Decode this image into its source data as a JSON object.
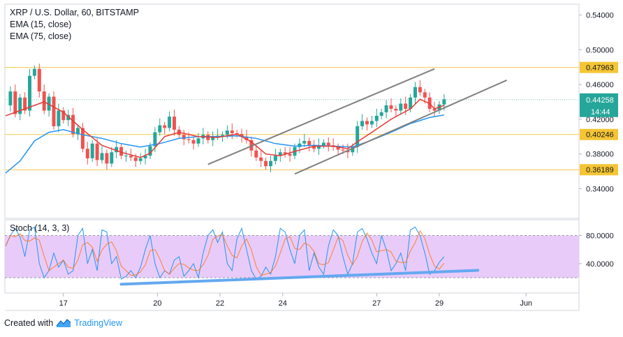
{
  "header": {
    "symbol_line": "XRP / U.S. Dollar, 60, BITSTAMP",
    "ema1_label": "EMA (15, close)",
    "ema2_label": "EMA (75, close)"
  },
  "oscillator": {
    "label": "Stoch (14, 3, 3)",
    "ticks": [
      "80.0000",
      "40.0000"
    ],
    "upper_band": 80,
    "lower_band": 20
  },
  "footer": {
    "created_with": "Created with",
    "brand": "TradingView"
  },
  "colors": {
    "up": "#26a69a",
    "down": "#ef5350",
    "ema_fast": "#e53935",
    "ema_slow": "#2196f3",
    "level_line": "#f2c94c",
    "level_label_bg": "#f5c533",
    "channel": "#808080",
    "stoch_fill": "#e7c5fa",
    "trendline": "#64a8f0"
  },
  "chart_data": {
    "type": "candlestick",
    "title": "XRP / U.S. Dollar, 60, BITSTAMP",
    "y_ticks": [
      "0.54000",
      "0.50000",
      "0.46000",
      "0.42000",
      "0.38000",
      "0.34000"
    ],
    "x_ticks": [
      "17",
      "20",
      "22",
      "24",
      "27",
      "29",
      "Jun"
    ],
    "ylim": [
      0.33,
      0.55
    ],
    "horizontal_levels": [
      "0.47963",
      "0.40246",
      "0.36189"
    ],
    "last_price": "0.44258",
    "countdown": "14:44",
    "series": [
      {
        "name": "EMA (15, close)",
        "type": "line"
      },
      {
        "name": "EMA (75, close)",
        "type": "line"
      }
    ],
    "price_path": [
      [
        0,
        0.436
      ],
      [
        1,
        0.452
      ],
      [
        2,
        0.426
      ],
      [
        3,
        0.445
      ],
      [
        4,
        0.43
      ],
      [
        5,
        0.47
      ],
      [
        6,
        0.478
      ],
      [
        7,
        0.452
      ],
      [
        8,
        0.43
      ],
      [
        9,
        0.446
      ],
      [
        10,
        0.412
      ],
      [
        11,
        0.43
      ],
      [
        12,
        0.419
      ],
      [
        13,
        0.425
      ],
      [
        14,
        0.403
      ],
      [
        15,
        0.41
      ],
      [
        16,
        0.386
      ],
      [
        17,
        0.375
      ],
      [
        18,
        0.392
      ],
      [
        19,
        0.373
      ],
      [
        20,
        0.381
      ],
      [
        21,
        0.369
      ],
      [
        22,
        0.382
      ],
      [
        23,
        0.388
      ],
      [
        24,
        0.378
      ],
      [
        25,
        0.378
      ],
      [
        26,
        0.376
      ],
      [
        27,
        0.372
      ],
      [
        28,
        0.375
      ],
      [
        29,
        0.378
      ],
      [
        30,
        0.389
      ],
      [
        31,
        0.405
      ],
      [
        32,
        0.413
      ],
      [
        33,
        0.41
      ],
      [
        34,
        0.423
      ],
      [
        35,
        0.408
      ],
      [
        36,
        0.402
      ],
      [
        37,
        0.397
      ],
      [
        38,
        0.396
      ],
      [
        39,
        0.392
      ],
      [
        40,
        0.398
      ],
      [
        41,
        0.402
      ],
      [
        42,
        0.396
      ],
      [
        43,
        0.4
      ],
      [
        44,
        0.401
      ],
      [
        45,
        0.402
      ],
      [
        46,
        0.407
      ],
      [
        47,
        0.404
      ],
      [
        48,
        0.403
      ],
      [
        49,
        0.4
      ],
      [
        50,
        0.396
      ],
      [
        51,
        0.384
      ],
      [
        52,
        0.376
      ],
      [
        53,
        0.372
      ],
      [
        54,
        0.366
      ],
      [
        55,
        0.372
      ],
      [
        56,
        0.378
      ],
      [
        57,
        0.382
      ],
      [
        58,
        0.38
      ],
      [
        59,
        0.378
      ],
      [
        60,
        0.388
      ],
      [
        61,
        0.392
      ],
      [
        62,
        0.395
      ],
      [
        63,
        0.39
      ],
      [
        64,
        0.386
      ],
      [
        65,
        0.39
      ],
      [
        66,
        0.393
      ],
      [
        67,
        0.39
      ],
      [
        68,
        0.388
      ],
      [
        69,
        0.385
      ],
      [
        70,
        0.384
      ],
      [
        71,
        0.382
      ],
      [
        72,
        0.388
      ],
      [
        73,
        0.412
      ],
      [
        74,
        0.418
      ],
      [
        75,
        0.414
      ],
      [
        76,
        0.418
      ],
      [
        77,
        0.424
      ],
      [
        78,
        0.428
      ],
      [
        79,
        0.436
      ],
      [
        80,
        0.432
      ],
      [
        81,
        0.43
      ],
      [
        82,
        0.438
      ],
      [
        83,
        0.432
      ],
      [
        84,
        0.445
      ],
      [
        85,
        0.457
      ],
      [
        86,
        0.451
      ],
      [
        87,
        0.445
      ],
      [
        88,
        0.432
      ],
      [
        89,
        0.43
      ],
      [
        90,
        0.437
      ],
      [
        91,
        0.443
      ]
    ],
    "ema_fast_path": [
      [
        0,
        0.424
      ],
      [
        4,
        0.432
      ],
      [
        8,
        0.44
      ],
      [
        12,
        0.428
      ],
      [
        16,
        0.408
      ],
      [
        20,
        0.39
      ],
      [
        24,
        0.382
      ],
      [
        28,
        0.376
      ],
      [
        30,
        0.381
      ],
      [
        33,
        0.4
      ],
      [
        36,
        0.405
      ],
      [
        40,
        0.4
      ],
      [
        44,
        0.399
      ],
      [
        48,
        0.403
      ],
      [
        51,
        0.394
      ],
      [
        54,
        0.38
      ],
      [
        57,
        0.378
      ],
      [
        60,
        0.383
      ],
      [
        64,
        0.389
      ],
      [
        68,
        0.389
      ],
      [
        71,
        0.386
      ],
      [
        73,
        0.394
      ],
      [
        76,
        0.405
      ],
      [
        80,
        0.42
      ],
      [
        84,
        0.432
      ],
      [
        86,
        0.443
      ],
      [
        88,
        0.438
      ],
      [
        89,
        0.432
      ],
      [
        91,
        0.436
      ]
    ],
    "ema_slow_path": [
      [
        0,
        0.358
      ],
      [
        3,
        0.372
      ],
      [
        6,
        0.395
      ],
      [
        9,
        0.405
      ],
      [
        12,
        0.408
      ],
      [
        16,
        0.402
      ],
      [
        20,
        0.398
      ],
      [
        24,
        0.392
      ],
      [
        28,
        0.388
      ],
      [
        32,
        0.392
      ],
      [
        36,
        0.398
      ],
      [
        40,
        0.4
      ],
      [
        44,
        0.4
      ],
      [
        48,
        0.401
      ],
      [
        52,
        0.398
      ],
      [
        56,
        0.392
      ],
      [
        60,
        0.389
      ],
      [
        64,
        0.39
      ],
      [
        68,
        0.389
      ],
      [
        72,
        0.388
      ],
      [
        76,
        0.396
      ],
      [
        80,
        0.405
      ],
      [
        84,
        0.415
      ],
      [
        88,
        0.422
      ],
      [
        91,
        0.425
      ]
    ],
    "upper_channel": [
      [
        42,
        0.368
      ],
      [
        89,
        0.478
      ]
    ],
    "lower_channel": [
      [
        60,
        0.357
      ],
      [
        104,
        0.465
      ]
    ],
    "stoch_trendline": [
      [
        24,
        0.12
      ],
      [
        98,
        0.31
      ]
    ],
    "stoch_k": [
      [
        0,
        65
      ],
      [
        1,
        80
      ],
      [
        2,
        90
      ],
      [
        3,
        78
      ],
      [
        4,
        50
      ],
      [
        5,
        88
      ],
      [
        6,
        92
      ],
      [
        7,
        40
      ],
      [
        8,
        20
      ],
      [
        9,
        30
      ],
      [
        10,
        55
      ],
      [
        11,
        35
      ],
      [
        12,
        45
      ],
      [
        13,
        25
      ],
      [
        14,
        30
      ],
      [
        15,
        80
      ],
      [
        16,
        90
      ],
      [
        17,
        40
      ],
      [
        18,
        60
      ],
      [
        19,
        30
      ],
      [
        20,
        88
      ],
      [
        21,
        85
      ],
      [
        22,
        40
      ],
      [
        23,
        50
      ],
      [
        24,
        18
      ],
      [
        25,
        22
      ],
      [
        26,
        30
      ],
      [
        27,
        20
      ],
      [
        28,
        35
      ],
      [
        29,
        60
      ],
      [
        30,
        80
      ],
      [
        31,
        40
      ],
      [
        32,
        20
      ],
      [
        33,
        30
      ],
      [
        34,
        25
      ],
      [
        35,
        45
      ],
      [
        36,
        50
      ],
      [
        37,
        22
      ],
      [
        38,
        30
      ],
      [
        39,
        40
      ],
      [
        40,
        20
      ],
      [
        41,
        55
      ],
      [
        42,
        80
      ],
      [
        43,
        88
      ],
      [
        44,
        70
      ],
      [
        45,
        85
      ],
      [
        46,
        40
      ],
      [
        47,
        30
      ],
      [
        48,
        75
      ],
      [
        49,
        90
      ],
      [
        50,
        60
      ],
      [
        51,
        30
      ],
      [
        52,
        18
      ],
      [
        53,
        22
      ],
      [
        54,
        35
      ],
      [
        55,
        25
      ],
      [
        56,
        50
      ],
      [
        57,
        90
      ],
      [
        58,
        85
      ],
      [
        59,
        60
      ],
      [
        60,
        40
      ],
      [
        61,
        80
      ],
      [
        62,
        88
      ],
      [
        63,
        30
      ],
      [
        64,
        55
      ],
      [
        65,
        35
      ],
      [
        66,
        25
      ],
      [
        67,
        65
      ],
      [
        68,
        88
      ],
      [
        69,
        80
      ],
      [
        70,
        50
      ],
      [
        71,
        25
      ],
      [
        72,
        40
      ],
      [
        73,
        85
      ],
      [
        74,
        90
      ],
      [
        75,
        75
      ],
      [
        76,
        55
      ],
      [
        77,
        40
      ],
      [
        78,
        80
      ],
      [
        79,
        60
      ],
      [
        80,
        30
      ],
      [
        81,
        40
      ],
      [
        82,
        55
      ],
      [
        83,
        30
      ],
      [
        84,
        88
      ],
      [
        85,
        92
      ],
      [
        86,
        80
      ],
      [
        87,
        55
      ],
      [
        88,
        25
      ],
      [
        89,
        30
      ],
      [
        90,
        42
      ],
      [
        91,
        50
      ]
    ]
  }
}
